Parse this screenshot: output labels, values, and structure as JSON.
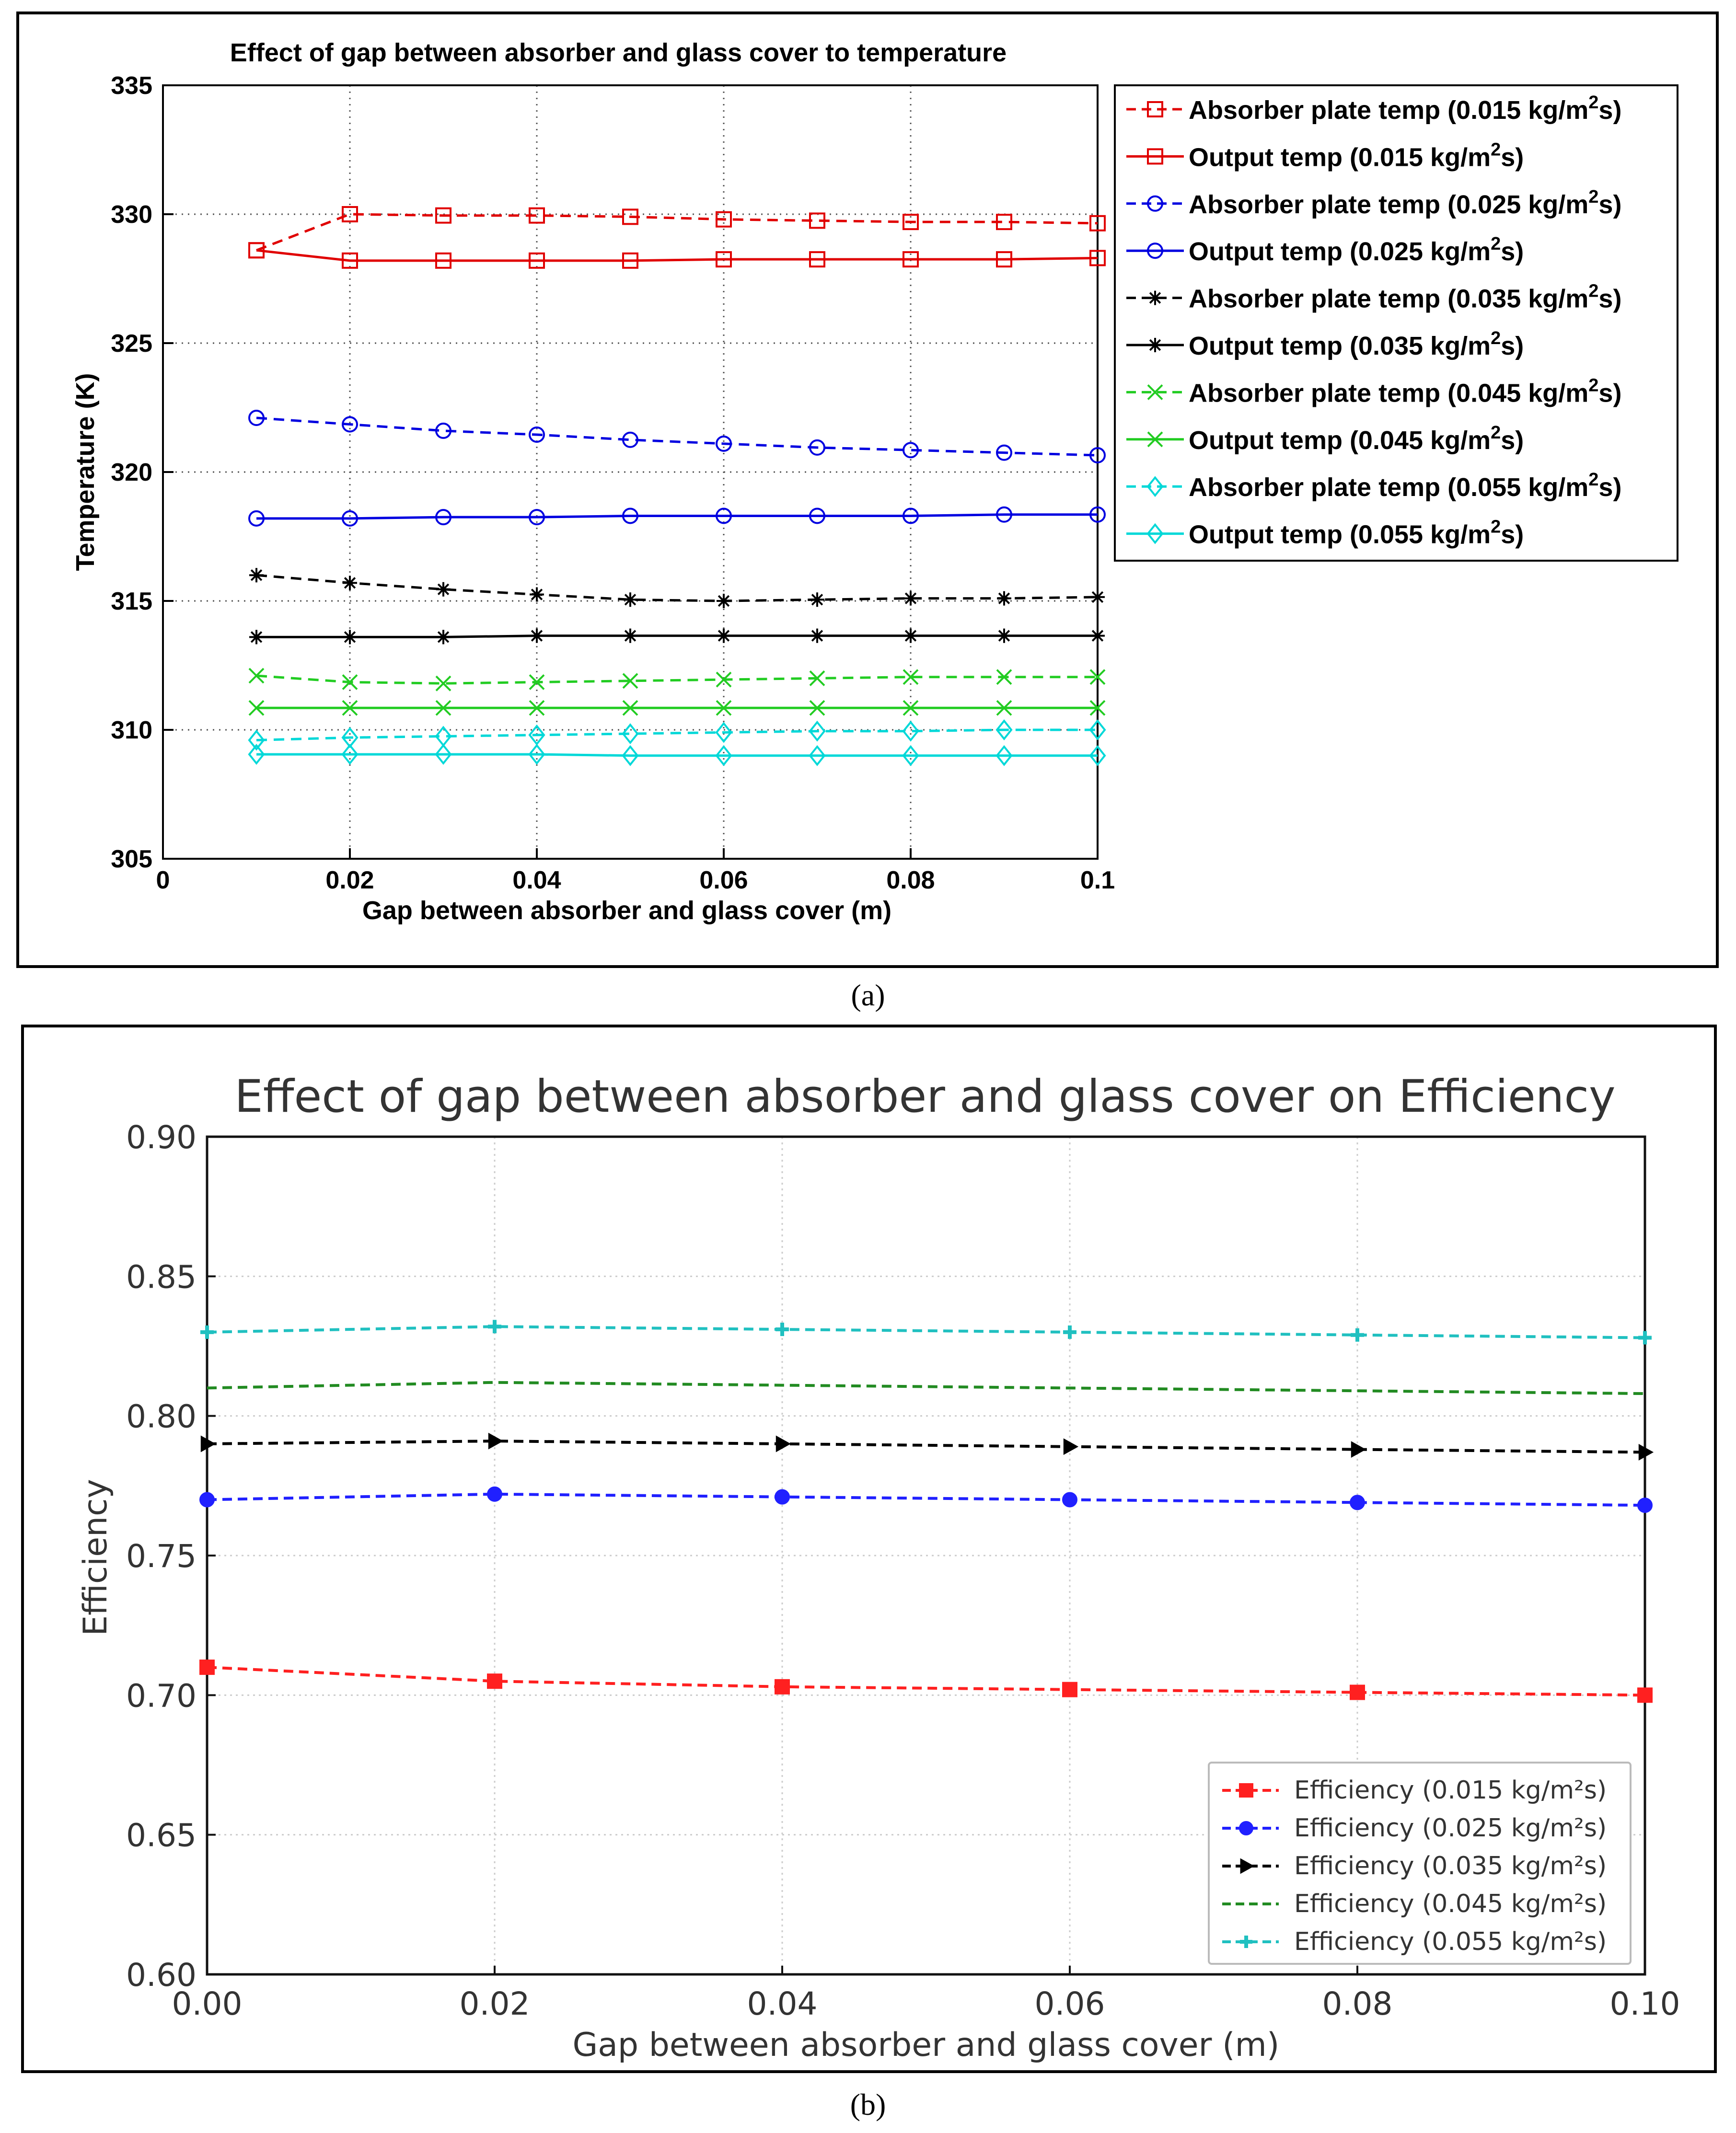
{
  "captions": {
    "a": "(a)",
    "b": "(b)"
  },
  "chart_data": [
    {
      "type": "line",
      "title": "Effect of gap between absorber and glass cover to temperature",
      "xlabel": "Gap between absorber and glass cover (m)",
      "ylabel": "Temperature (K)",
      "xlim": [
        0,
        0.1
      ],
      "ylim": [
        305,
        335
      ],
      "xticks": [
        0,
        0.02,
        0.04,
        0.06,
        0.08,
        0.1
      ],
      "xtick_labels": [
        "0",
        "0.02",
        "0.04",
        "0.06",
        "0.08",
        "0.1"
      ],
      "yticks": [
        305,
        310,
        315,
        320,
        325,
        330,
        335
      ],
      "ytick_labels": [
        "305",
        "310",
        "315",
        "320",
        "325",
        "330",
        "335"
      ],
      "grid": true,
      "legend_position": "outside-right",
      "x": [
        0.01,
        0.02,
        0.03,
        0.04,
        0.05,
        0.06,
        0.07,
        0.08,
        0.09,
        0.1
      ],
      "series": [
        {
          "name": "Absorber plate temp (0.015 kg/m2s)",
          "legend_prefix": "Absorber plate temp (0.015 kg/m",
          "legend_suffix": "s)",
          "color": "#e00000",
          "dash": "dashed",
          "marker": "square",
          "values": [
            328.6,
            330.0,
            329.95,
            329.95,
            329.9,
            329.8,
            329.75,
            329.7,
            329.7,
            329.65
          ]
        },
        {
          "name": "Output temp (0.015 kg/m2s)",
          "legend_prefix": "Output temp (0.015 kg/m",
          "legend_suffix": "s)",
          "color": "#e00000",
          "dash": "solid",
          "marker": "square",
          "values": [
            328.6,
            328.2,
            328.2,
            328.2,
            328.2,
            328.25,
            328.25,
            328.25,
            328.25,
            328.3
          ]
        },
        {
          "name": "Absorber plate temp (0.025 kg/m2s)",
          "legend_prefix": "Absorber plate temp (0.025 kg/m",
          "legend_suffix": "s)",
          "color": "#0000e0",
          "dash": "dashed",
          "marker": "circle",
          "values": [
            322.1,
            321.85,
            321.6,
            321.45,
            321.25,
            321.1,
            320.95,
            320.85,
            320.75,
            320.65
          ]
        },
        {
          "name": "Output temp (0.025 kg/m2s)",
          "legend_prefix": "Output temp (0.025 kg/m",
          "legend_suffix": "s)",
          "color": "#0000e0",
          "dash": "solid",
          "marker": "circle",
          "values": [
            318.2,
            318.2,
            318.25,
            318.25,
            318.3,
            318.3,
            318.3,
            318.3,
            318.35,
            318.35
          ]
        },
        {
          "name": "Absorber plate temp (0.035 kg/m2s)",
          "legend_prefix": "Absorber plate temp (0.035 kg/m",
          "legend_suffix": "s)",
          "color": "#000000",
          "dash": "dashed",
          "marker": "star",
          "values": [
            316.0,
            315.7,
            315.45,
            315.25,
            315.05,
            315.0,
            315.05,
            315.1,
            315.1,
            315.15
          ]
        },
        {
          "name": "Output temp (0.035 kg/m2s)",
          "legend_prefix": "Output temp (0.035 kg/m",
          "legend_suffix": "s)",
          "color": "#000000",
          "dash": "solid",
          "marker": "star",
          "values": [
            313.6,
            313.6,
            313.6,
            313.65,
            313.65,
            313.65,
            313.65,
            313.65,
            313.65,
            313.65
          ]
        },
        {
          "name": "Absorber plate temp (0.045 kg/m2s)",
          "legend_prefix": "Absorber plate temp (0.045 kg/m",
          "legend_suffix": "s)",
          "color": "#22cc22",
          "dash": "dashed",
          "marker": "x",
          "values": [
            312.1,
            311.85,
            311.8,
            311.85,
            311.9,
            311.95,
            312.0,
            312.05,
            312.05,
            312.05
          ]
        },
        {
          "name": "Output temp (0.045 kg/m2s)",
          "legend_prefix": "Output temp (0.045 kg/m",
          "legend_suffix": "s)",
          "color": "#22cc22",
          "dash": "solid",
          "marker": "x",
          "values": [
            310.85,
            310.85,
            310.85,
            310.85,
            310.85,
            310.85,
            310.85,
            310.85,
            310.85,
            310.85
          ]
        },
        {
          "name": "Absorber plate temp (0.055 kg/m2s)",
          "legend_prefix": "Absorber plate temp (0.055 kg/m",
          "legend_suffix": "s)",
          "color": "#00d8d8",
          "dash": "dashed",
          "marker": "diamond",
          "values": [
            309.6,
            309.7,
            309.75,
            309.8,
            309.85,
            309.9,
            309.95,
            309.95,
            310.0,
            310.0
          ]
        },
        {
          "name": "Output temp (0.055 kg/m2s)",
          "legend_prefix": "Output temp (0.055 kg/m",
          "legend_suffix": "s)",
          "color": "#00d8d8",
          "dash": "solid",
          "marker": "diamond",
          "values": [
            309.05,
            309.05,
            309.05,
            309.05,
            309.0,
            309.0,
            309.0,
            309.0,
            309.0,
            309.0
          ]
        }
      ]
    },
    {
      "type": "line",
      "title": "Effect of gap between absorber and glass cover on Efficiency",
      "xlabel": "Gap between absorber and glass cover (m)",
      "ylabel": "Efficiency",
      "xlim": [
        0,
        0.1
      ],
      "ylim": [
        0.6,
        0.9
      ],
      "xticks": [
        0,
        0.02,
        0.04,
        0.06,
        0.08,
        0.1
      ],
      "xtick_labels": [
        "0.00",
        "0.02",
        "0.04",
        "0.06",
        "0.08",
        "0.10"
      ],
      "yticks": [
        0.6,
        0.65,
        0.7,
        0.75,
        0.8,
        0.85,
        0.9
      ],
      "ytick_labels": [
        "0.60",
        "0.65",
        "0.70",
        "0.75",
        "0.80",
        "0.85",
        "0.90"
      ],
      "grid": true,
      "legend_position": "lower-right",
      "x": [
        0.0,
        0.02,
        0.04,
        0.06,
        0.08,
        0.1
      ],
      "series": [
        {
          "name": "Efficiency (0.015 kg/m²s)",
          "color": "#ff2020",
          "dash": "dashed",
          "marker": "square",
          "values": [
            0.71,
            0.705,
            0.703,
            0.702,
            0.701,
            0.7
          ]
        },
        {
          "name": "Efficiency (0.025 kg/m²s)",
          "color": "#2020ff",
          "dash": "dashed",
          "marker": "circle",
          "values": [
            0.77,
            0.772,
            0.771,
            0.77,
            0.769,
            0.768
          ]
        },
        {
          "name": "Efficiency (0.035 kg/m²s)",
          "color": "#000000",
          "dash": "dashed",
          "marker": "triangle-right",
          "values": [
            0.79,
            0.791,
            0.79,
            0.789,
            0.788,
            0.787
          ]
        },
        {
          "name": "Efficiency (0.045 kg/m²s)",
          "color": "#228b22",
          "dash": "dashed",
          "marker": "none",
          "values": [
            0.81,
            0.812,
            0.811,
            0.81,
            0.809,
            0.808
          ]
        },
        {
          "name": "Efficiency (0.055 kg/m²s)",
          "color": "#20c0c0",
          "dash": "dashed",
          "marker": "plus",
          "values": [
            0.83,
            0.832,
            0.831,
            0.83,
            0.829,
            0.828
          ]
        }
      ]
    }
  ]
}
